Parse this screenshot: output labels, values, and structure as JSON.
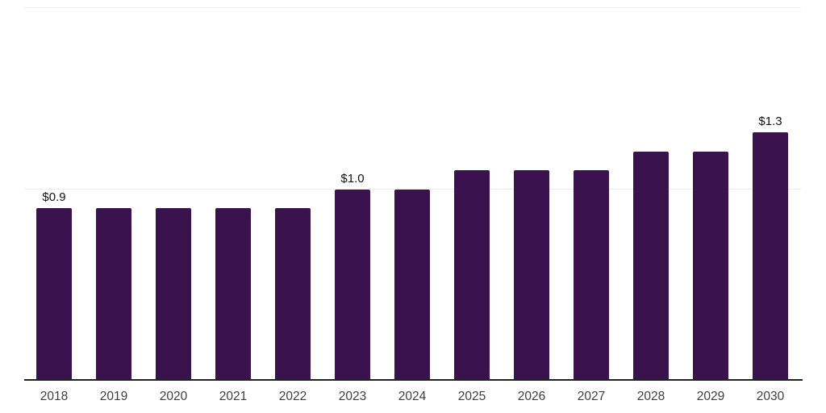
{
  "chart_data": {
    "type": "bar",
    "title": "",
    "xlabel": "",
    "ylabel": "",
    "categories": [
      "2018",
      "2019",
      "2020",
      "2021",
      "2022",
      "2023",
      "2024",
      "2025",
      "2026",
      "2027",
      "2028",
      "2029",
      "2030"
    ],
    "values": [
      0.9,
      0.9,
      0.9,
      0.9,
      0.9,
      1.0,
      1.0,
      1.1,
      1.1,
      1.1,
      1.2,
      1.2,
      1.3
    ],
    "data_labels": [
      "$0.9",
      "",
      "",
      "",
      "",
      "$1.0",
      "",
      "",
      "",
      "",
      "",
      "",
      "$1.3"
    ],
    "currency_unit": "$",
    "ylim": [
      0,
      1.96
    ],
    "grid": {
      "horizontal_lines_at": [
        1.0
      ],
      "top_border": true,
      "vertical": false
    },
    "legend": "none",
    "colors": {
      "bar": "#39124E",
      "gridline": "#ECECEC",
      "axis": "#222222",
      "tick_label": "#3D3D3D",
      "data_label": "#111111",
      "background": "#FFFFFF"
    }
  }
}
